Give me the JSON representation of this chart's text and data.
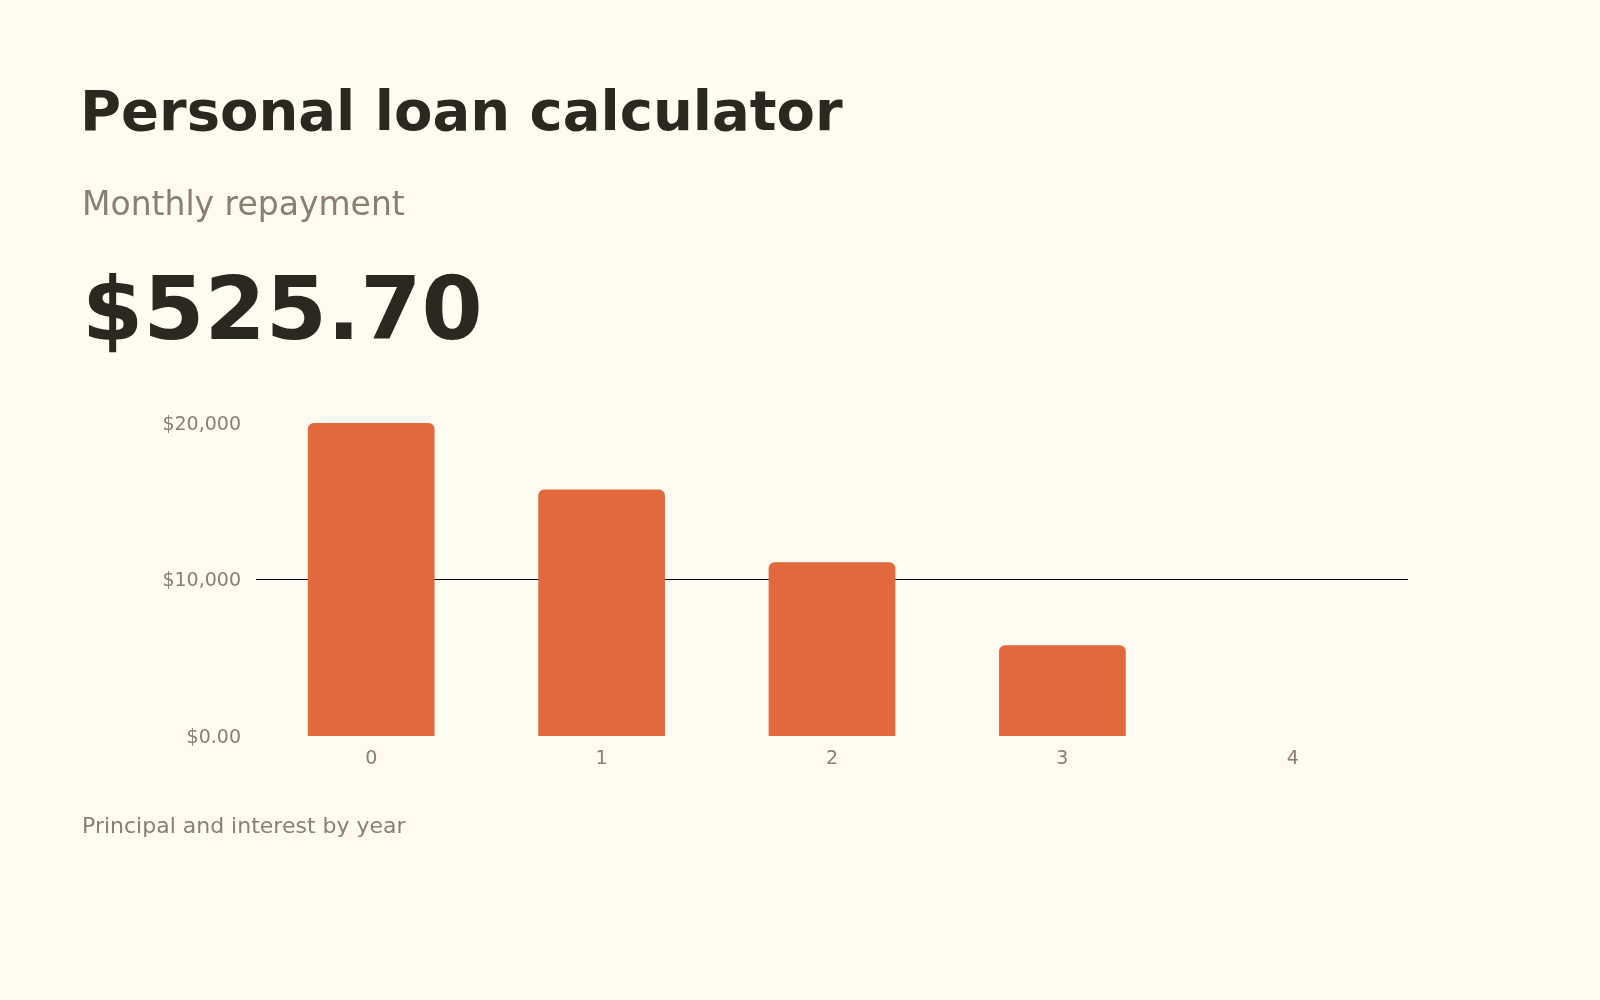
{
  "chart_data": {
    "type": "bar",
    "title": "Personal loan calculator",
    "subtitle": "Monthly repayment",
    "annotations": [
      "$525.70",
      "Principal and interest by year"
    ],
    "categories": [
      "0",
      "1",
      "2",
      "3",
      "4"
    ],
    "values": [
      20000,
      15750,
      11100,
      5800,
      0
    ],
    "color": "#e2683e",
    "ylim": [
      0,
      20000
    ],
    "yticks": [
      {
        "value": 0,
        "label": "$0.00"
      },
      {
        "value": 10000,
        "label": "$10,000"
      },
      {
        "value": 20000,
        "label": "$20,000"
      }
    ],
    "grid": "y",
    "legend": false
  }
}
